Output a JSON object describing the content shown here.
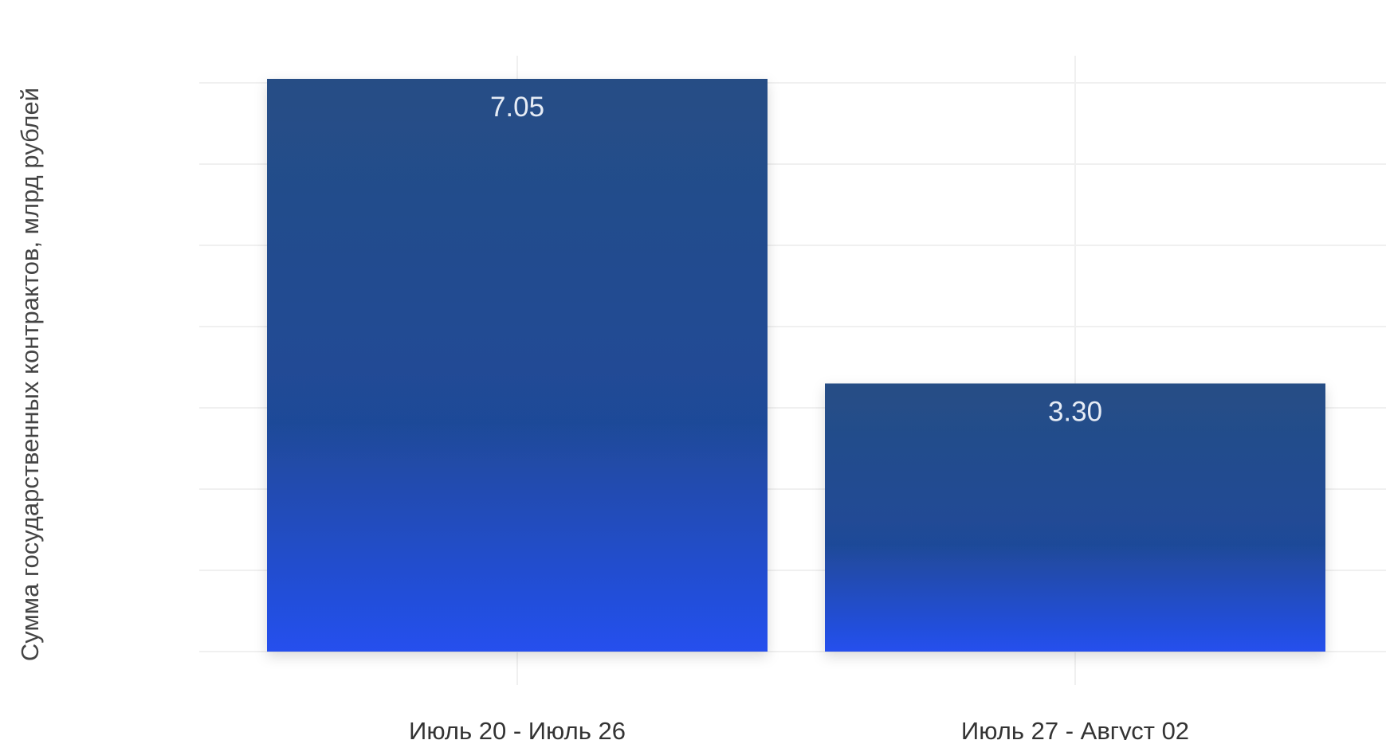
{
  "chart_data": {
    "type": "bar",
    "categories": [
      "Июль 20 - Июль 26",
      "Июль 27 - Август 02"
    ],
    "values": [
      7.05,
      3.3
    ],
    "data_labels": [
      "7.05",
      "3.30"
    ],
    "title": "",
    "xlabel": "",
    "ylabel": "Сумма государственных контрактов, млрд рублей",
    "ylim": [
      0,
      7.05
    ],
    "grid": true,
    "legend": "none",
    "colors": {
      "bar_top": "#264e85",
      "bar_mid": "#1f4a98",
      "bar_bottom": "#2550ee",
      "label": "#e6ecf5",
      "grid": "#f0f0f0"
    }
  }
}
